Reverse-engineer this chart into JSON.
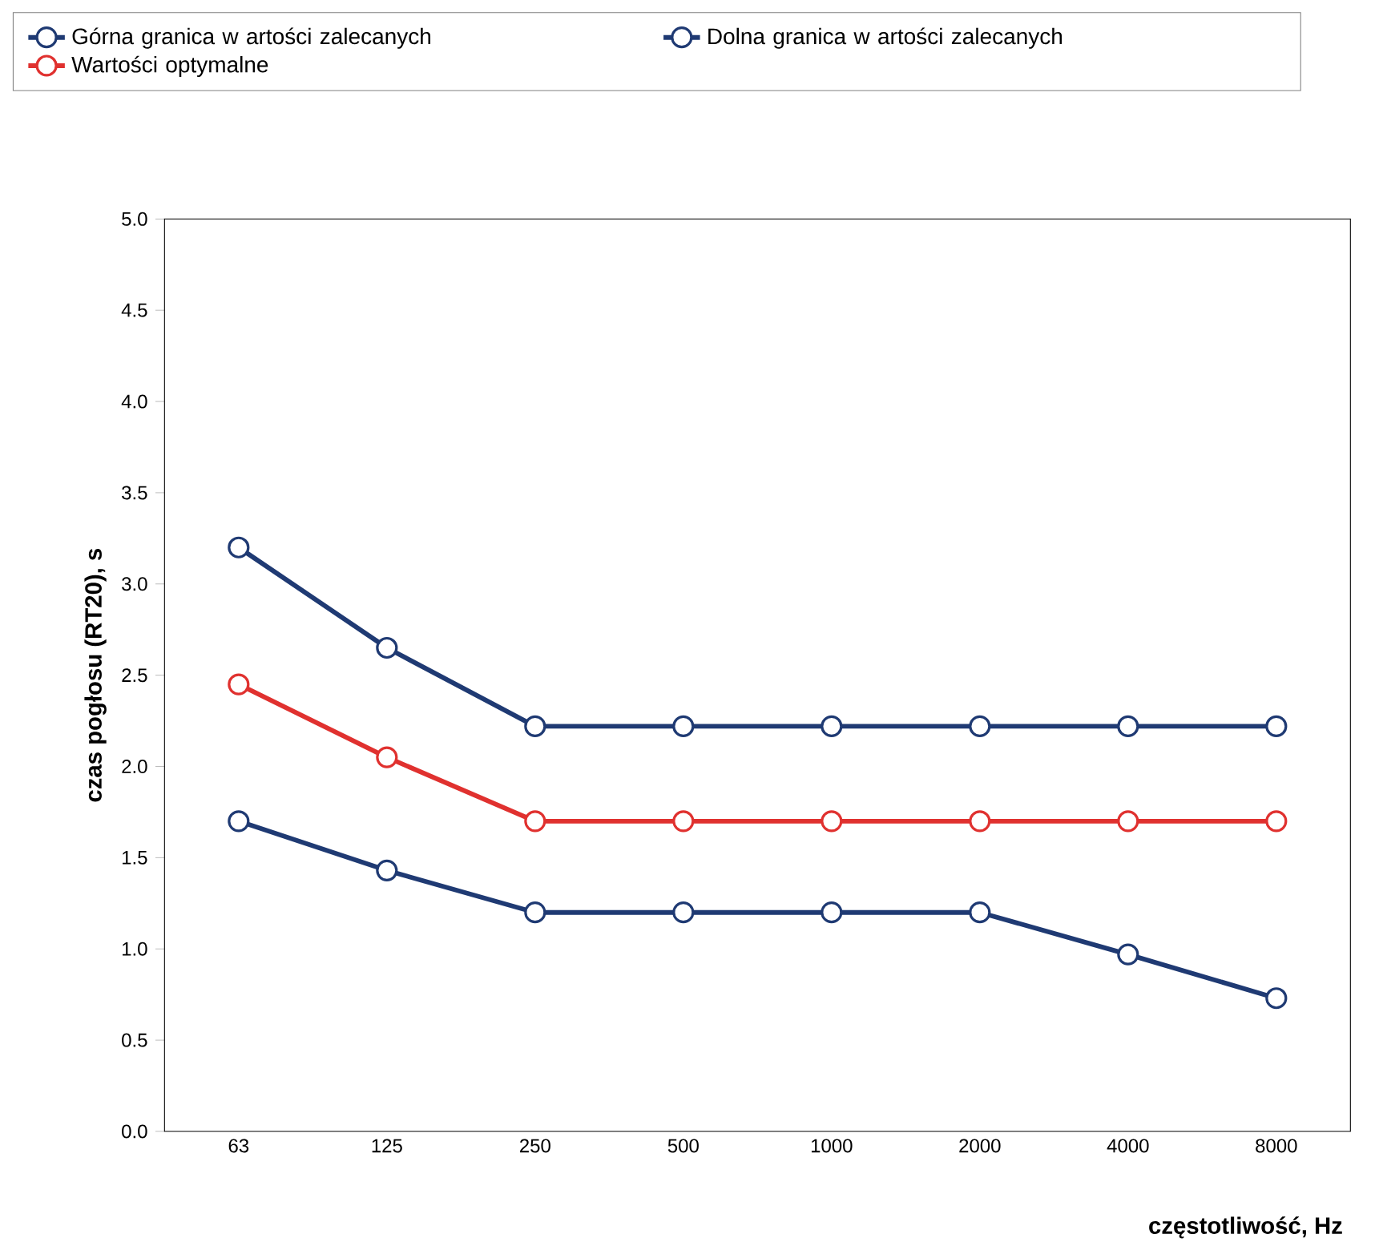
{
  "chart_data": {
    "type": "line",
    "xlabel": "częstotliwość, Hz",
    "ylabel": "czas pogłosu (RT20), s",
    "categories": [
      "63",
      "125",
      "250",
      "500",
      "1000",
      "2000",
      "4000",
      "8000"
    ],
    "series": [
      {
        "name": "Górna granica w artości zalecanych",
        "color": "#1f3a73",
        "values": [
          3.2,
          2.65,
          2.22,
          2.22,
          2.22,
          2.22,
          2.22,
          2.22
        ]
      },
      {
        "name": "Dolna granica w artości zalecanych",
        "color": "#1f3a73",
        "values": [
          1.7,
          1.43,
          1.2,
          1.2,
          1.2,
          1.2,
          0.97,
          0.73
        ]
      },
      {
        "name": "Wartości optymalne",
        "color": "#e0312f",
        "values": [
          2.45,
          2.05,
          1.7,
          1.7,
          1.7,
          1.7,
          1.7,
          1.7
        ]
      }
    ],
    "ylim": [
      0,
      5
    ],
    "yticks": [
      {
        "value": 0,
        "label": "0.0"
      },
      {
        "value": 0.5,
        "label": "0.5"
      },
      {
        "value": 1,
        "label": "1.0"
      },
      {
        "value": 1.5,
        "label": "1.5"
      },
      {
        "value": 2,
        "label": "2.0"
      },
      {
        "value": 2.5,
        "label": "2.5"
      },
      {
        "value": 3,
        "label": "3.0"
      },
      {
        "value": 3.5,
        "label": "3.5"
      },
      {
        "value": 4,
        "label": "4.0"
      },
      {
        "value": 4.5,
        "label": "4.5"
      },
      {
        "value": 5,
        "label": "5.0"
      }
    ],
    "grid": false,
    "legend": "top",
    "marker": "circle",
    "line_style": "solid"
  }
}
